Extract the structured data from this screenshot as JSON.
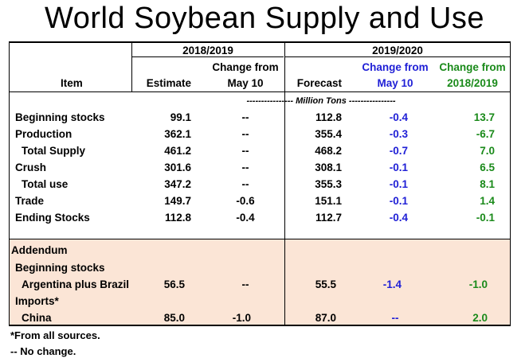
{
  "title": "World Soybean Supply and Use",
  "header": {
    "group1": "2018/2019",
    "group2": "2019/2020",
    "col_item": "Item",
    "col_estimate": "Estimate",
    "col_change1_line1": "Change from",
    "col_change1_line2": "May 10",
    "col_forecast": "Forecast",
    "col_change2_line1": "Change from",
    "col_change2_line2": "May 10",
    "col_change3_line1": "Change from",
    "col_change3_line2": "2018/2019"
  },
  "units": "---------------- Million Tons ----------------",
  "rows": [
    {
      "item": "Beginning stocks",
      "estimate": "99.1",
      "chg1": "--",
      "forecast": "112.8",
      "chg2": "-0.4",
      "chg3": "13.7"
    },
    {
      "item": "Production",
      "estimate": "362.1",
      "chg1": "--",
      "forecast": "355.4",
      "chg2": "-0.3",
      "chg3": "-6.7"
    },
    {
      "item": "Total Supply",
      "estimate": "461.2",
      "chg1": "--",
      "forecast": "468.2",
      "chg2": "-0.7",
      "chg3": "7.0"
    },
    {
      "item": "Crush",
      "estimate": "301.6",
      "chg1": "--",
      "forecast": "308.1",
      "chg2": "-0.1",
      "chg3": "6.5"
    },
    {
      "item": "Total use",
      "estimate": "347.2",
      "chg1": "--",
      "forecast": "355.3",
      "chg2": "-0.1",
      "chg3": "8.1"
    },
    {
      "item": "Trade",
      "estimate": "149.7",
      "chg1": "-0.6",
      "forecast": "151.1",
      "chg2": "-0.1",
      "chg3": "1.4"
    },
    {
      "item": "Ending Stocks",
      "estimate": "112.8",
      "chg1": "-0.4",
      "forecast": "112.7",
      "chg2": "-0.4",
      "chg3": "-0.1"
    }
  ],
  "addendum": {
    "label": "Addendum",
    "beginning_stocks_label": "Beginning stocks",
    "argbr": {
      "item": "Argentina plus Brazil",
      "estimate": "56.5",
      "chg1": "--",
      "forecast": "55.5",
      "chg2": "-1.4",
      "chg3": "-1.0"
    },
    "imports_label": "Imports*",
    "china": {
      "item": "China",
      "estimate": "85.0",
      "chg1": "-1.0",
      "forecast": "87.0",
      "chg2": "--",
      "chg3": "2.0"
    }
  },
  "footnotes": {
    "note1": "*From all sources.",
    "note2": "-- No change."
  },
  "colors": {
    "change_may": "#1f1fd6",
    "change_year": "#1a8a1a",
    "addendum_bg": "#fbe5d6"
  }
}
